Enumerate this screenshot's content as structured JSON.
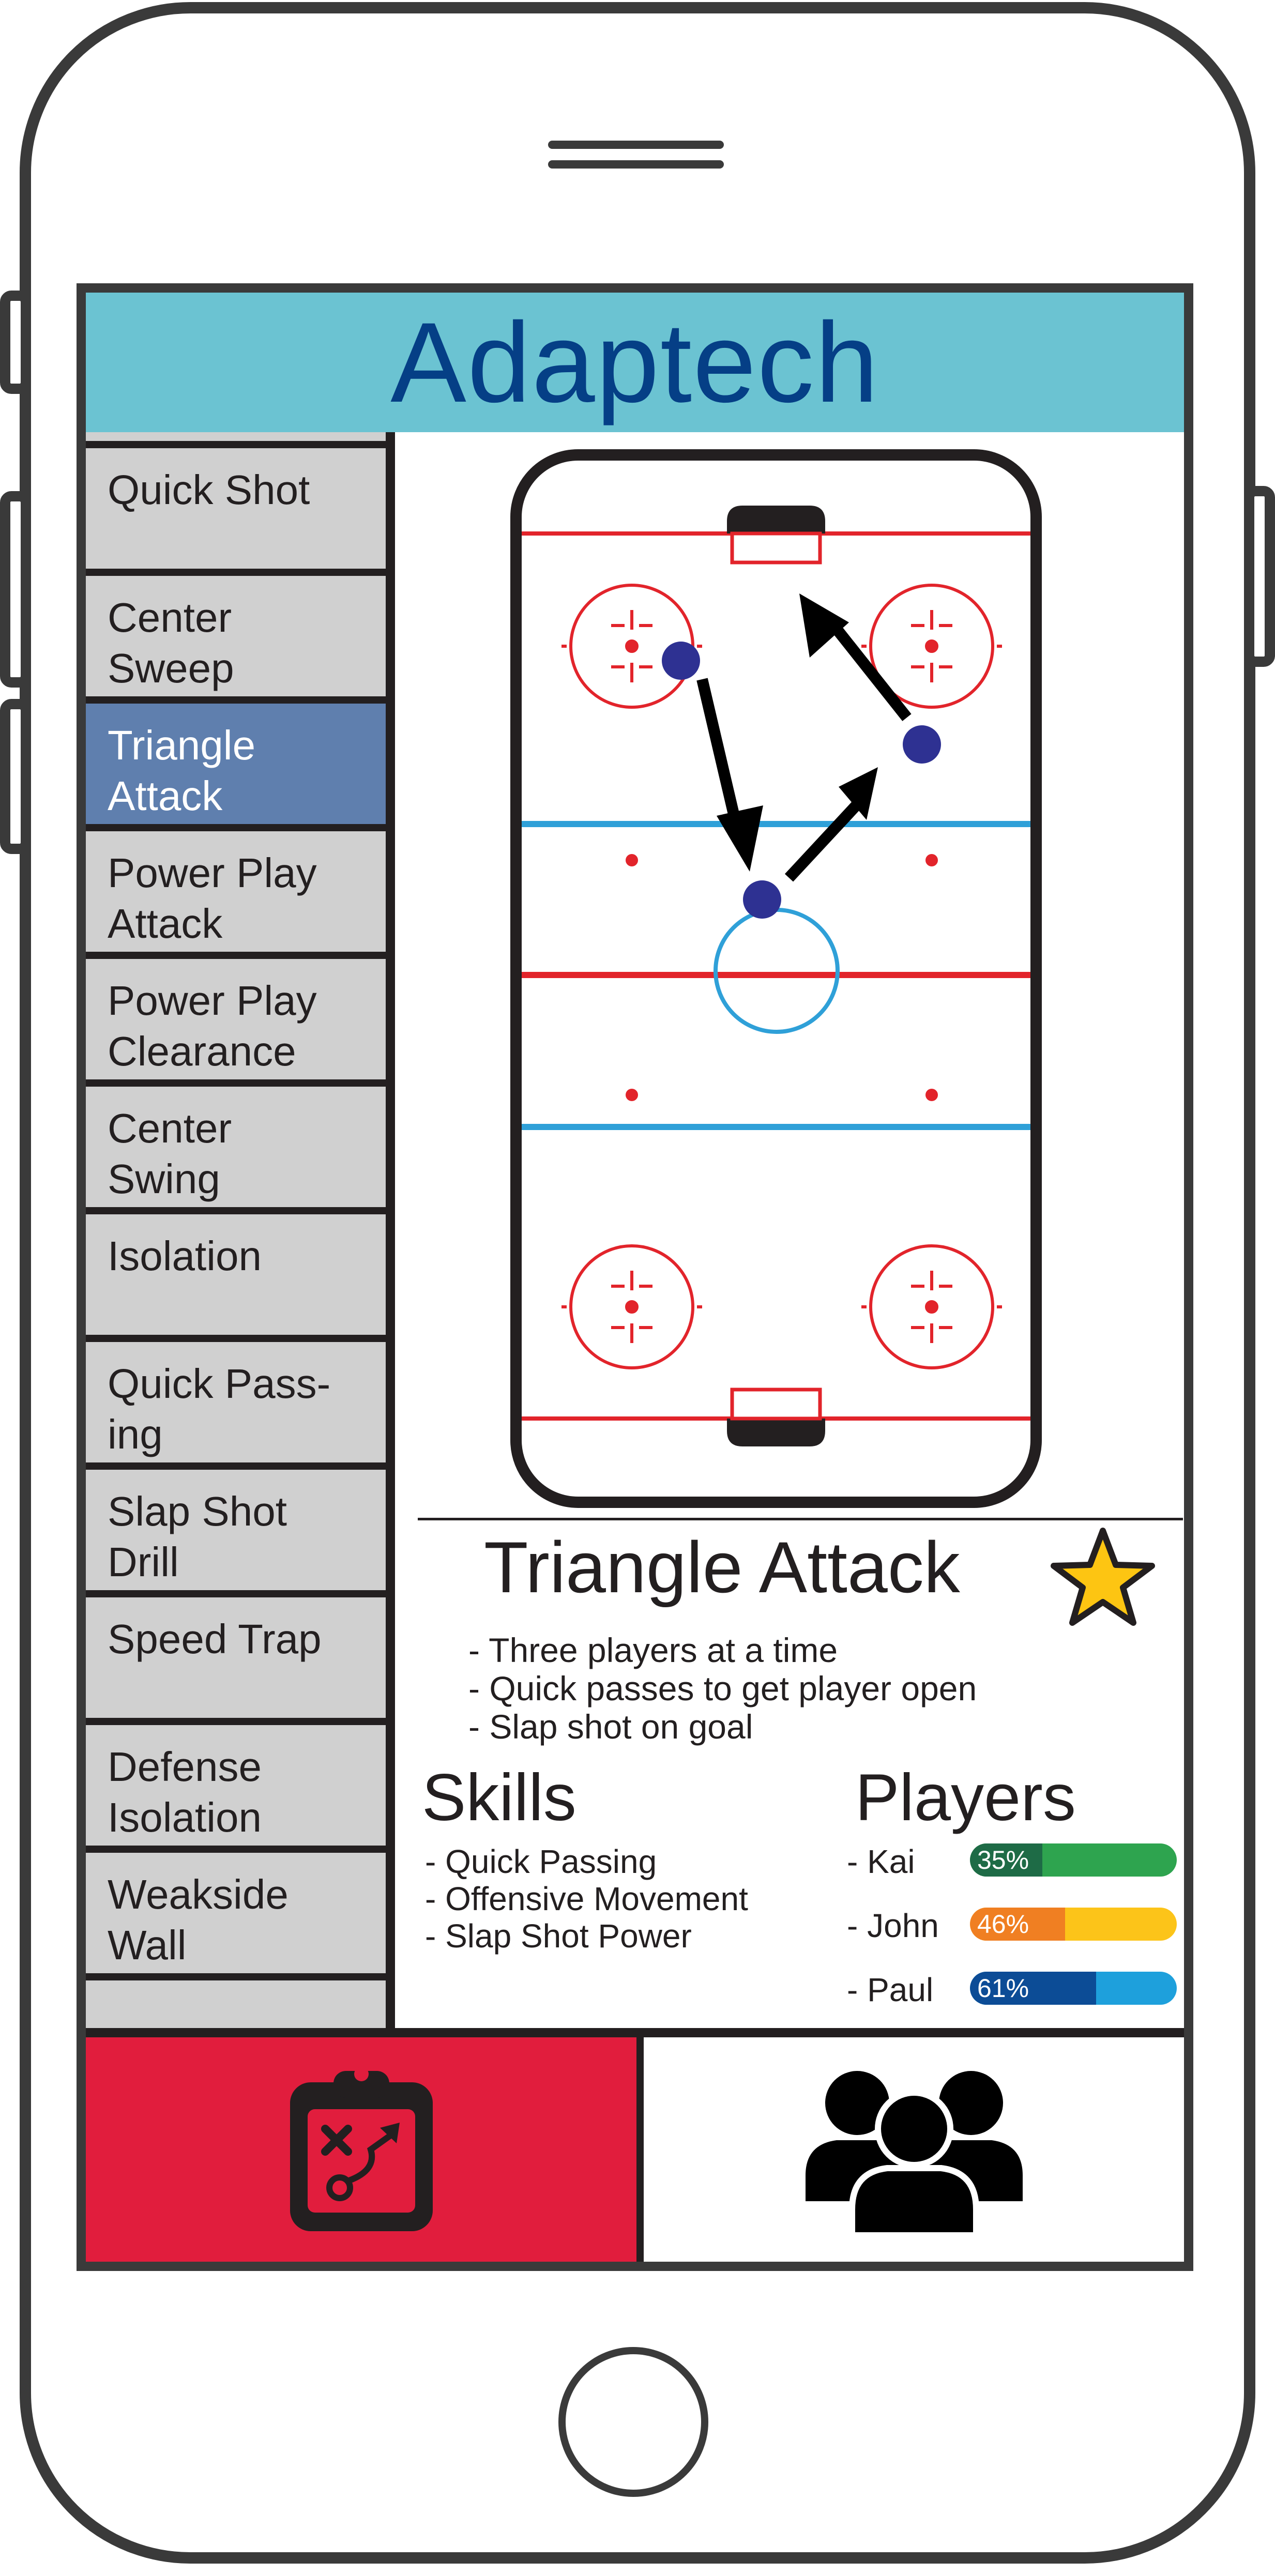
{
  "app": {
    "title": "Adaptech"
  },
  "colors": {
    "header_bg": "#6bc3d2",
    "title_text": "#053f86",
    "sidebar_bg": "#d0d0d0",
    "sidebar_active": "#5f7fae",
    "tab_active": "#e11d3d",
    "rink_red": "#e2242b",
    "rink_blue": "#2fa0d8",
    "player_dot": "#2e3192",
    "star": "#fdc512"
  },
  "sidebar": {
    "items": [
      {
        "label": "Quick Shot"
      },
      {
        "label": "Center\nSweep"
      },
      {
        "label": "Triangle\nAttack"
      },
      {
        "label": "Power Play\nAttack"
      },
      {
        "label": "Power Play\nClearance"
      },
      {
        "label": "Center\nSwing"
      },
      {
        "label": "Isolation"
      },
      {
        "label": "Quick Pass-\ning"
      },
      {
        "label": "Slap Shot\nDrill"
      },
      {
        "label": "Speed Trap"
      },
      {
        "label": "Defense\nIsolation"
      },
      {
        "label": "Weakside\nWall"
      }
    ],
    "active_index": 2
  },
  "play": {
    "title": "Triangle Attack",
    "favorite_icon": "star-icon",
    "description": [
      "- Three players at a time",
      "- Quick passes to get player open",
      "- Slap shot on goal"
    ]
  },
  "skills": {
    "title": "Skills",
    "items": [
      "- Quick Passing",
      "- Offensive Movement",
      "- Slap Shot Power"
    ]
  },
  "players": {
    "title": "Players",
    "items": [
      {
        "name": "- Kai",
        "value": 35,
        "label": "35%",
        "fill": "#1e6b46",
        "track": "#2ea44f"
      },
      {
        "name": "- John",
        "value": 46,
        "label": "46%",
        "fill": "#f07f22",
        "track": "#fcc419"
      },
      {
        "name": "- Paul",
        "value": 61,
        "label": "61%",
        "fill": "#0c4c96",
        "track": "#1ea0dc"
      }
    ]
  },
  "tabs": [
    {
      "name": "plays",
      "icon": "clipboard-play-icon",
      "active": true
    },
    {
      "name": "players",
      "icon": "group-icon",
      "active": false
    }
  ]
}
